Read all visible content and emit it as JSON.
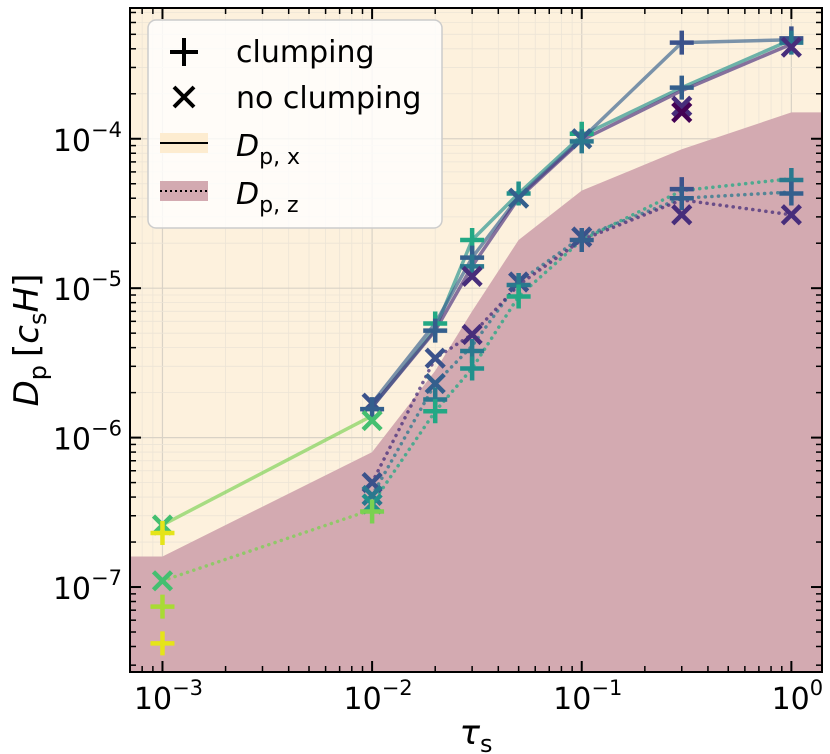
{
  "chart_data": {
    "type": "scatter",
    "xscale": "log",
    "yscale": "log",
    "xlim": [
      0.0007,
      1.4
    ],
    "ylim": [
      2.7e-08,
      0.00075
    ],
    "xlabel": {
      "base": "τ",
      "sub": "s"
    },
    "ylabel": {
      "base": "D",
      "sub": "p",
      "unit_open": "[",
      "unit_c": "c",
      "unit_c_sub": "s",
      "unit_H": "H",
      "unit_close": "]"
    },
    "x_ticks": [
      {
        "value": 0.001,
        "base": "10",
        "exp": "−3"
      },
      {
        "value": 0.01,
        "base": "10",
        "exp": "−2"
      },
      {
        "value": 0.1,
        "base": "10",
        "exp": "−1"
      },
      {
        "value": 1,
        "base": "10",
        "exp": "0"
      }
    ],
    "y_ticks": [
      {
        "value": 1e-07,
        "base": "10",
        "exp": "−7"
      },
      {
        "value": 1e-06,
        "base": "10",
        "exp": "−6"
      },
      {
        "value": 1e-05,
        "base": "10",
        "exp": "−5"
      },
      {
        "value": 0.0001,
        "base": "10",
        "exp": "−4"
      }
    ],
    "colors": {
      "bg_x": "#fdf1dd",
      "band_z": "#d3aab1",
      "yellow": "#e5e419",
      "lime": "#a8db34",
      "lgreen": "#7ad151",
      "green": "#44bf70",
      "teal": "#22a884",
      "cyan": "#21918c",
      "tblue": "#2a788e",
      "blue": "#345f8d",
      "indigo": "#3b528b",
      "purple": "#472d7b",
      "dpurple": "#440154"
    },
    "band_z": {
      "x": [
        0.0007,
        0.001,
        0.01,
        0.02,
        0.03,
        0.05,
        0.1,
        0.3,
        1.0,
        1.4
      ],
      "y": [
        1.6e-07,
        1.6e-07,
        8e-07,
        2.8e-06,
        7e-06,
        2.1e-05,
        4.5e-05,
        8.5e-05,
        0.00015,
        0.00015
      ]
    },
    "series": [
      {
        "name": "Dpx-a",
        "color": "lgreen",
        "style": "solid",
        "x": [
          0.001,
          0.01
        ],
        "y": [
          2.6e-07,
          1.4e-06
        ]
      },
      {
        "name": "Dpz-a",
        "color": "lgreen",
        "style": "dotted",
        "x": [
          0.001,
          0.01
        ],
        "y": [
          1.1e-07,
          3.3e-07
        ]
      },
      {
        "name": "Dpx-b",
        "color": "cyan",
        "style": "solid",
        "x": [
          0.01,
          0.02,
          0.03,
          0.05,
          0.1,
          0.3,
          1.0
        ],
        "y": [
          1.6e-06,
          5.3e-06,
          2.1e-05,
          4.3e-05,
          0.000105,
          0.00022,
          0.00046
        ]
      },
      {
        "name": "Dpx-c",
        "color": "blue",
        "style": "solid",
        "x": [
          0.01,
          0.02,
          0.03,
          0.05,
          0.1,
          0.3,
          1.0
        ],
        "y": [
          1.7e-06,
          5.8e-06,
          1.6e-05,
          4.1e-05,
          0.0001,
          0.00044,
          0.00046
        ]
      },
      {
        "name": "Dpx-d",
        "color": "purple",
        "style": "solid",
        "x": [
          0.01,
          0.02,
          0.03,
          0.05,
          0.1,
          0.3,
          1.0
        ],
        "y": [
          1.6e-06,
          5.2e-06,
          1.4e-05,
          4e-05,
          9.8e-05,
          0.00021,
          0.00043
        ]
      },
      {
        "name": "Dpz-b",
        "color": "teal",
        "style": "dotted",
        "x": [
          0.01,
          0.02,
          0.03,
          0.05,
          0.1,
          0.3,
          1.0
        ],
        "y": [
          3.6e-07,
          1.5e-06,
          2.9e-06,
          8.8e-06,
          2.1e-05,
          4.5e-05,
          5.4e-05
        ]
      },
      {
        "name": "Dpz-c",
        "color": "tblue",
        "style": "dotted",
        "x": [
          0.01,
          0.02,
          0.03,
          0.05,
          0.1,
          0.3,
          1.0
        ],
        "y": [
          4.1e-07,
          2.3e-06,
          4.1e-06,
          1.1e-05,
          2.2e-05,
          4e-05,
          4.4e-05
        ]
      },
      {
        "name": "Dpz-d",
        "color": "purple",
        "style": "dotted",
        "x": [
          0.01,
          0.02,
          0.03,
          0.05,
          0.1,
          0.3,
          1.0
        ],
        "y": [
          5e-07,
          3.4e-06,
          4.9e-06,
          1.05e-05,
          2.1e-05,
          3.9e-05,
          3.1e-05
        ]
      }
    ],
    "points": [
      {
        "x": 0.001,
        "y": 2.6e-07,
        "m": "x",
        "c": "green"
      },
      {
        "x": 0.001,
        "y": 2.3e-07,
        "m": "plus",
        "c": "yellow"
      },
      {
        "x": 0.001,
        "y": 1.1e-07,
        "m": "x",
        "c": "green"
      },
      {
        "x": 0.001,
        "y": 7.4e-08,
        "m": "plus",
        "c": "lime"
      },
      {
        "x": 0.001,
        "y": 4.2e-08,
        "m": "plus",
        "c": "yellow"
      },
      {
        "x": 0.01,
        "y": 1.7e-06,
        "m": "x",
        "c": "indigo"
      },
      {
        "x": 0.01,
        "y": 1.55e-06,
        "m": "plus",
        "c": "blue"
      },
      {
        "x": 0.01,
        "y": 1.3e-06,
        "m": "x",
        "c": "green"
      },
      {
        "x": 0.01,
        "y": 5e-07,
        "m": "x",
        "c": "indigo"
      },
      {
        "x": 0.01,
        "y": 4.1e-07,
        "m": "x",
        "c": "tblue"
      },
      {
        "x": 0.01,
        "y": 3.6e-07,
        "m": "x",
        "c": "cyan"
      },
      {
        "x": 0.01,
        "y": 3.2e-07,
        "m": "plus",
        "c": "lgreen"
      },
      {
        "x": 0.02,
        "y": 5.8e-06,
        "m": "plus",
        "c": "teal"
      },
      {
        "x": 0.02,
        "y": 5.2e-06,
        "m": "plus",
        "c": "blue"
      },
      {
        "x": 0.02,
        "y": 3.4e-06,
        "m": "x",
        "c": "indigo"
      },
      {
        "x": 0.02,
        "y": 2.3e-06,
        "m": "x",
        "c": "blue"
      },
      {
        "x": 0.02,
        "y": 1.8e-06,
        "m": "plus",
        "c": "tblue"
      },
      {
        "x": 0.02,
        "y": 1.5e-06,
        "m": "plus",
        "c": "teal"
      },
      {
        "x": 0.03,
        "y": 2.1e-05,
        "m": "plus",
        "c": "teal"
      },
      {
        "x": 0.03,
        "y": 1.6e-05,
        "m": "plus",
        "c": "blue"
      },
      {
        "x": 0.03,
        "y": 1.4e-05,
        "m": "plus",
        "c": "tblue"
      },
      {
        "x": 0.03,
        "y": 1.2e-05,
        "m": "x",
        "c": "purple"
      },
      {
        "x": 0.03,
        "y": 4.9e-06,
        "m": "x",
        "c": "purple"
      },
      {
        "x": 0.03,
        "y": 3.8e-06,
        "m": "plus",
        "c": "tblue"
      },
      {
        "x": 0.03,
        "y": 2.9e-06,
        "m": "plus",
        "c": "cyan"
      },
      {
        "x": 0.05,
        "y": 4.3e-05,
        "m": "plus",
        "c": "cyan"
      },
      {
        "x": 0.05,
        "y": 4e-05,
        "m": "x",
        "c": "blue"
      },
      {
        "x": 0.05,
        "y": 1.1e-05,
        "m": "x",
        "c": "indigo"
      },
      {
        "x": 0.05,
        "y": 1.05e-05,
        "m": "plus",
        "c": "tblue"
      },
      {
        "x": 0.05,
        "y": 8.8e-06,
        "m": "plus",
        "c": "teal"
      },
      {
        "x": 0.1,
        "y": 0.000108,
        "m": "plus",
        "c": "teal"
      },
      {
        "x": 0.1,
        "y": 0.0001,
        "m": "x",
        "c": "blue"
      },
      {
        "x": 0.1,
        "y": 9.6e-05,
        "m": "plus",
        "c": "tblue"
      },
      {
        "x": 0.1,
        "y": 2.2e-05,
        "m": "x",
        "c": "indigo"
      },
      {
        "x": 0.1,
        "y": 2.1e-05,
        "m": "plus",
        "c": "blue"
      },
      {
        "x": 0.3,
        "y": 0.00044,
        "m": "plus",
        "c": "indigo"
      },
      {
        "x": 0.3,
        "y": 0.00022,
        "m": "plus",
        "c": "blue"
      },
      {
        "x": 0.3,
        "y": 0.000165,
        "m": "x",
        "c": "purple"
      },
      {
        "x": 0.3,
        "y": 0.00015,
        "m": "x",
        "c": "dpurple"
      },
      {
        "x": 0.3,
        "y": 4.6e-05,
        "m": "plus",
        "c": "indigo"
      },
      {
        "x": 0.3,
        "y": 4e-05,
        "m": "plus",
        "c": "blue"
      },
      {
        "x": 0.3,
        "y": 3.1e-05,
        "m": "x",
        "c": "purple"
      },
      {
        "x": 1.0,
        "y": 0.00047,
        "m": "plus",
        "c": "indigo"
      },
      {
        "x": 1.0,
        "y": 0.00044,
        "m": "plus",
        "c": "tblue"
      },
      {
        "x": 1.0,
        "y": 0.00041,
        "m": "x",
        "c": "purple"
      },
      {
        "x": 1.0,
        "y": 5.3e-05,
        "m": "plus",
        "c": "tblue"
      },
      {
        "x": 1.0,
        "y": 4.3e-05,
        "m": "plus",
        "c": "blue"
      },
      {
        "x": 1.0,
        "y": 3.1e-05,
        "m": "x",
        "c": "purple"
      }
    ],
    "legend": {
      "position": "top-left",
      "clumping": "clumping",
      "no_clumping": "no clumping",
      "dpx": {
        "base": "D",
        "sub": "p, x"
      },
      "dpz": {
        "base": "D",
        "sub": "p, z"
      }
    }
  }
}
